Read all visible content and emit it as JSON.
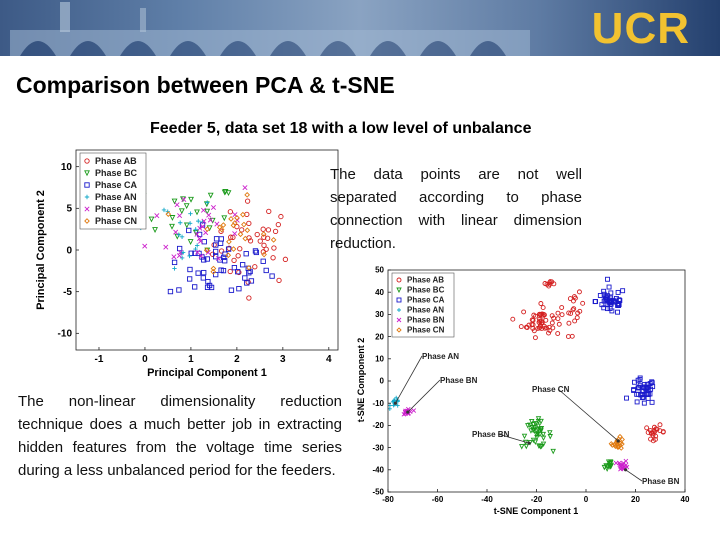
{
  "header": {
    "logo_text": "UCR",
    "banner_color": "#4a6a96",
    "logo_color": "#f2c230"
  },
  "slide": {
    "title": "Comparison between PCA & t-SNE",
    "subtitle": "Feeder 5, data set 18 with a low level of unbalance",
    "paragraph_pca": "The data points are not well separated according to phase connection with linear dimension reduction.",
    "paragraph_tsne": "The non-linear dimensionality reduction technique does a much better job in extracting hidden features from the voltage time series during a less unbalanced period for the feeders."
  },
  "chart_data": [
    {
      "type": "scatter",
      "title": "",
      "xlabel": "Principal Component 1",
      "ylabel": "Principal Component 2",
      "xlim": [
        -1.5,
        4.2
      ],
      "ylim": [
        -12,
        12
      ],
      "xticks": [
        -1,
        0,
        1,
        2,
        3,
        4
      ],
      "xtick_labels": [
        "-1",
        "0",
        "1",
        "2",
        "3",
        "4"
      ],
      "yticks": [
        -10,
        -5,
        0,
        5,
        10
      ],
      "ytick_labels": [
        "-10",
        "-5",
        "0",
        "5",
        "10"
      ],
      "legend_position": "top-left",
      "series": [
        {
          "name": "Phase AB",
          "color": "#d42020",
          "marker": "circle",
          "cluster": {
            "center": [
              2.4,
              0.8
            ],
            "spread": [
              0.9,
              5
            ],
            "count": 40
          }
        },
        {
          "name": "Phase BC",
          "color": "#1a9a1a",
          "marker": "triangle",
          "cluster": {
            "center": [
              1.0,
              4
            ],
            "spread": [
              1.0,
              4
            ],
            "count": 25
          }
        },
        {
          "name": "Phase CA",
          "color": "#1a1acc",
          "marker": "square",
          "cluster": {
            "center": [
              1.6,
              -2
            ],
            "spread": [
              1.1,
              4
            ],
            "count": 55
          }
        },
        {
          "name": "Phase AN",
          "color": "#10a8c8",
          "marker": "plus",
          "cluster": {
            "center": [
              0.6,
              2
            ],
            "spread": [
              1.0,
              5
            ],
            "count": 20
          }
        },
        {
          "name": "Phase BN",
          "color": "#cc20cc",
          "marker": "cross",
          "cluster": {
            "center": [
              1.3,
              3
            ],
            "spread": [
              1.2,
              6
            ],
            "count": 30
          }
        },
        {
          "name": "Phase CN",
          "color": "#e07a10",
          "marker": "diamond",
          "cluster": {
            "center": [
              1.9,
              2
            ],
            "spread": [
              0.8,
              4
            ],
            "count": 25
          }
        }
      ]
    },
    {
      "type": "scatter",
      "title": "",
      "xlabel": "t-SNE Component 1",
      "ylabel": "t-SNE Component 2",
      "xlim": [
        -80,
        40
      ],
      "ylim": [
        -50,
        50
      ],
      "xticks": [
        -80,
        -60,
        -40,
        -20,
        0,
        20,
        40
      ],
      "xtick_labels": [
        "-80",
        "-60",
        "-40",
        "-20",
        "0",
        "20",
        "40"
      ],
      "yticks": [
        50,
        40,
        30,
        20,
        10,
        0,
        -10,
        -20,
        -30,
        -40,
        -50
      ],
      "ytick_labels": [
        "50",
        "40",
        "30",
        "20",
        "10",
        "0",
        "-10",
        "-20",
        "-30",
        "-40",
        "-50"
      ],
      "legend_position": "top-left",
      "annotations": [
        {
          "text": "Phase AN",
          "target": [
            -77,
            -10
          ]
        },
        {
          "text": "Phase BN",
          "target": [
            -72,
            -14
          ]
        },
        {
          "text": "Phase CN",
          "target": [
            13,
            -27
          ]
        },
        {
          "text": "Phase BN",
          "target": [
            -23,
            -28
          ]
        },
        {
          "text": "Phase BN",
          "target": [
            16,
            -40
          ]
        }
      ],
      "series": [
        {
          "name": "Phase AB",
          "color": "#d42020",
          "marker": "circle",
          "clusters": [
            {
              "center": [
                -18,
                27
              ],
              "spread": [
                8,
                7
              ],
              "count": 55
            },
            {
              "center": [
                -4,
                32
              ],
              "spread": [
                3,
                7
              ],
              "count": 15
            },
            {
              "center": [
                -15,
                44
              ],
              "spread": [
                3,
                2
              ],
              "count": 8
            },
            {
              "center": [
                28,
                -23
              ],
              "spread": [
                4,
                3
              ],
              "count": 20
            }
          ]
        },
        {
          "name": "Phase BC",
          "color": "#1a9a1a",
          "marker": "triangle",
          "clusters": [
            {
              "center": [
                -20,
                -24
              ],
              "spread": [
                6,
                6
              ],
              "count": 40
            },
            {
              "center": [
                9,
                -38
              ],
              "spread": [
                2,
                3
              ],
              "count": 12
            }
          ]
        },
        {
          "name": "Phase CA",
          "color": "#1a1acc",
          "marker": "square",
          "clusters": [
            {
              "center": [
                10,
                36
              ],
              "spread": [
                6,
                6
              ],
              "count": 45
            },
            {
              "center": [
                23,
                -5
              ],
              "spread": [
                5,
                6
              ],
              "count": 40
            }
          ]
        },
        {
          "name": "Phase AN",
          "color": "#10a8c8",
          "marker": "plus",
          "clusters": [
            {
              "center": [
                -77,
                -10
              ],
              "spread": [
                2,
                2
              ],
              "count": 15
            }
          ]
        },
        {
          "name": "Phase BN",
          "color": "#cc20cc",
          "marker": "cross",
          "clusters": [
            {
              "center": [
                -72,
                -14
              ],
              "spread": [
                2,
                2
              ],
              "count": 15
            },
            {
              "center": [
                15,
                -38
              ],
              "spread": [
                2,
                2
              ],
              "count": 15
            }
          ]
        },
        {
          "name": "Phase CN",
          "color": "#e07a10",
          "marker": "diamond",
          "clusters": [
            {
              "center": [
                13,
                -28
              ],
              "spread": [
                2.5,
                2.5
              ],
              "count": 20
            }
          ]
        }
      ]
    }
  ]
}
